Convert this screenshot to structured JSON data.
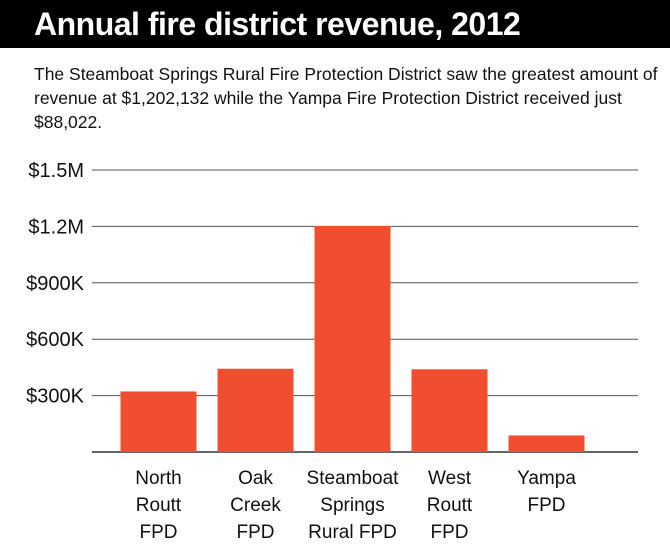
{
  "header": {
    "title": "Annual fire district revenue, 2012",
    "subtitle": "The Steamboat Springs Rural Fire Protection District saw the greatest amount of revenue at $1,202,132 while the Yampa Fire Protection District received just $88,022."
  },
  "colors": {
    "bar": "#f04e2e",
    "grid": "#555555",
    "title_bg": "#000000"
  },
  "chart_data": {
    "type": "bar",
    "title": "Annual fire district revenue, 2012",
    "xlabel": "",
    "ylabel": "",
    "categories": [
      [
        "North",
        "Routt",
        "FPD"
      ],
      [
        "Oak",
        "Creek",
        "FPD"
      ],
      [
        "Steamboat",
        "Springs",
        "Rural FPD"
      ],
      [
        "West",
        "Routt",
        "FPD"
      ],
      [
        "Yampa",
        "FPD"
      ]
    ],
    "values": [
      322000,
      443000,
      1202132,
      440000,
      88022
    ],
    "ylim": [
      0,
      1500000
    ],
    "yticks": [
      {
        "value": 300000,
        "label": "$300K"
      },
      {
        "value": 600000,
        "label": "$600K"
      },
      {
        "value": 900000,
        "label": "$900K"
      },
      {
        "value": 1200000,
        "label": "$1.2M"
      },
      {
        "value": 1500000,
        "label": "$1.5M"
      }
    ],
    "grid": true,
    "legend": "none"
  }
}
